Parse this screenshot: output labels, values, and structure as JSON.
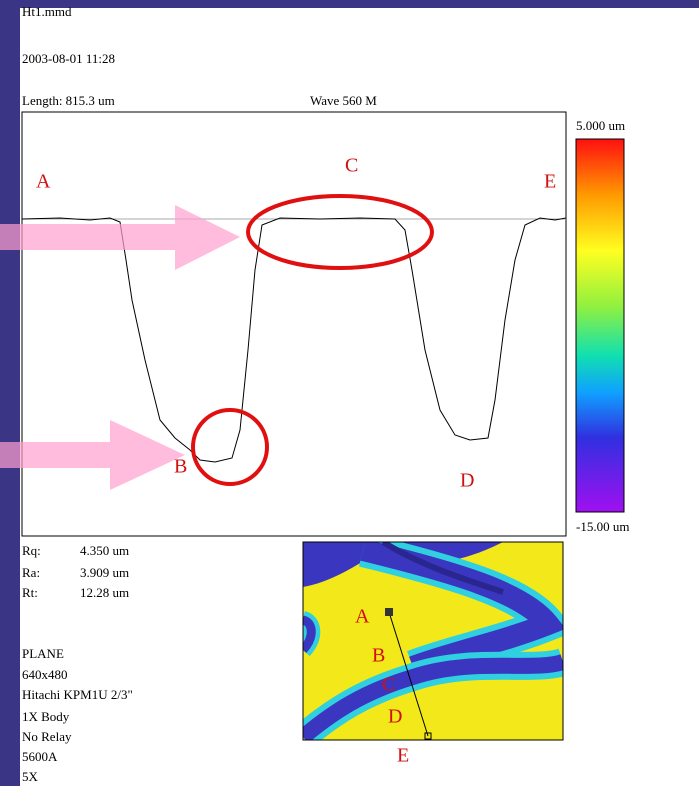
{
  "header": {
    "file": "Ht1.mmd",
    "datetime": "2003-08-01   11:28",
    "length": "Length: 815.3 um",
    "wave": "Wave 560 M"
  },
  "profile": {
    "labels": [
      "A",
      "B",
      "C",
      "D",
      "E"
    ]
  },
  "colorbar": {
    "max_label": "5.000 um",
    "min_label": "-15.00 um"
  },
  "stats": [
    [
      "Rq:",
      "4.350 um"
    ],
    [
      "Ra:",
      "3.909 um"
    ],
    [
      "Rt:",
      "12.28 um"
    ]
  ],
  "info": [
    "PLANE",
    "640x480",
    "Hitachi KPM1U 2/3\"",
    "1X Body",
    "No Relay",
    "5600A",
    "5X"
  ],
  "image": {
    "labels": [
      "A",
      "B",
      "C",
      "D",
      "E"
    ]
  }
}
